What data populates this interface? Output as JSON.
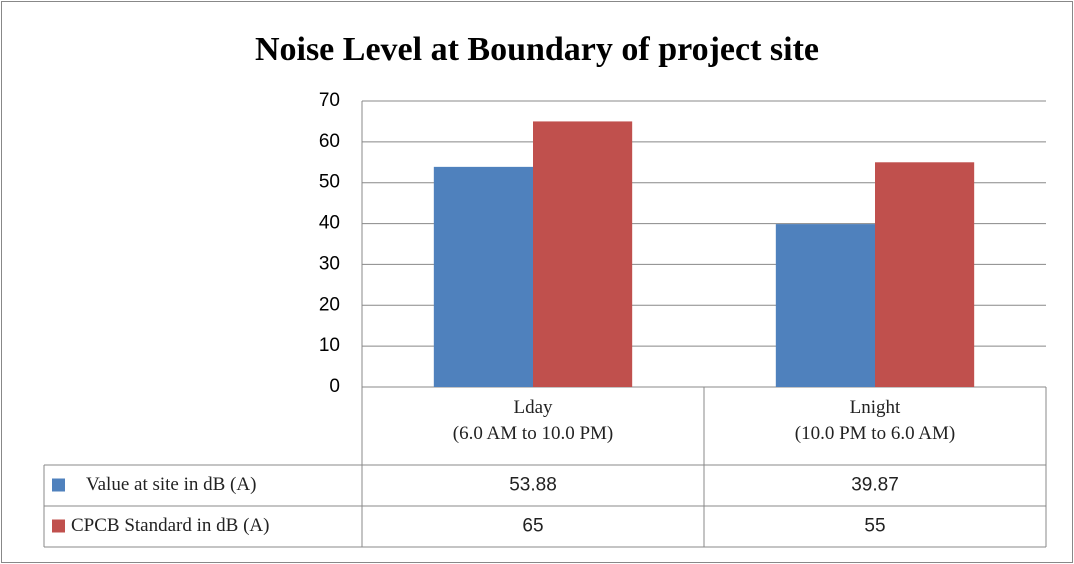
{
  "chart_data": {
    "type": "bar",
    "title": "Noise Level at Boundary of project site",
    "categories": [
      "Lday\n(6.0 AM  to 10.0 PM)",
      "Lnight\n(10.0 PM to 6.0 AM)"
    ],
    "series": [
      {
        "name": "Value at site in dB (A)",
        "color": "#4f81bd",
        "values": [
          53.88,
          39.87
        ]
      },
      {
        "name": "CPCB Standard in dB (A)",
        "color": "#c0504d",
        "values": [
          65,
          55
        ]
      }
    ],
    "ylim": [
      0,
      70
    ],
    "yticks": [
      0,
      10,
      20,
      30,
      40,
      50,
      60,
      70
    ],
    "grid": true
  }
}
